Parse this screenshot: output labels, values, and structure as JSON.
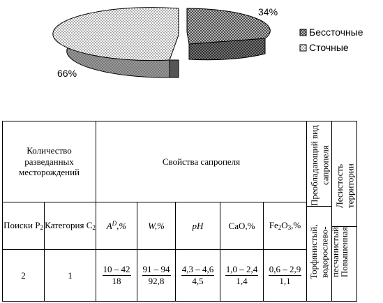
{
  "chart_data": {
    "type": "pie",
    "slices": [
      {
        "name": "Бессточные",
        "value": 34,
        "label": "34%",
        "pattern": "crosshatch"
      },
      {
        "name": "Сточные",
        "value": 66,
        "label": "66%",
        "pattern": "dots"
      }
    ],
    "legend_position": "right",
    "style": "3d-exploded"
  },
  "table": {
    "header": {
      "count_deposits": "Количество разведанных месторождений",
      "properties": "Свойства сапропеля",
      "dominant_type": "Преобладающий вид сапропеля",
      "forest_cover": "Лесистость территории"
    },
    "subheader": {
      "search_p2": "Поиски P",
      "search_p2_sub": "2",
      "category_c2": "Категория C",
      "category_c2_sub": "2",
      "ad_base": "A",
      "ad_sup": "D",
      "ad_unit": ",%",
      "w": "W,%",
      "ph": "pH",
      "cao": "CaO,%",
      "fe_base": "Fe",
      "fe_sub1": "2",
      "fe_mid": "O",
      "fe_sub2": "3",
      "fe_unit": ",%"
    },
    "row": {
      "search_p2": "2",
      "category_c2": "1",
      "ad": {
        "range": "10 – 42",
        "mean": "18"
      },
      "w": {
        "range": "91 – 94",
        "mean": "92,8"
      },
      "ph": {
        "range": "4,3 – 4,6",
        "mean": "4,5"
      },
      "cao": {
        "range": "1,0 – 2,4",
        "mean": "1,4"
      },
      "fe": {
        "range": "0,6 – 2,9",
        "mean": "1,1"
      },
      "dominant_type": "Торфянистый, водорослево-песчанистый",
      "forest_cover": "Повышенная"
    }
  }
}
